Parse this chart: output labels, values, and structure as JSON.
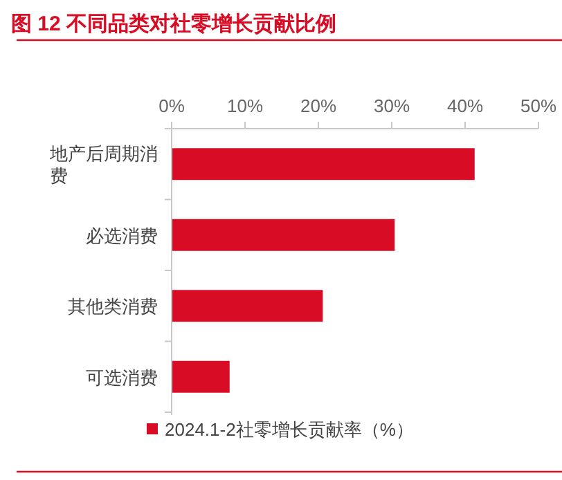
{
  "chart_data": {
    "type": "bar",
    "orientation": "horizontal",
    "title": "图 12   不同品类对社零增长贡献比例",
    "categories": [
      "地产后周期消费",
      "必选消费",
      "其他类消费",
      "可选消费"
    ],
    "series": [
      {
        "name": "2024.1-2社零增长贡献率（%）",
        "color": "#d80c24",
        "values": [
          41.3,
          30.4,
          20.6,
          7.9
        ]
      }
    ],
    "xlim": [
      0,
      50
    ],
    "xticks": [
      {
        "value": 0,
        "label": "0%"
      },
      {
        "value": 10,
        "label": "10%"
      },
      {
        "value": 20,
        "label": "20%"
      },
      {
        "value": 30,
        "label": "30%"
      },
      {
        "value": 40,
        "label": "40%"
      },
      {
        "value": 50,
        "label": "50%"
      }
    ],
    "grid": false,
    "legend": "bottom"
  }
}
